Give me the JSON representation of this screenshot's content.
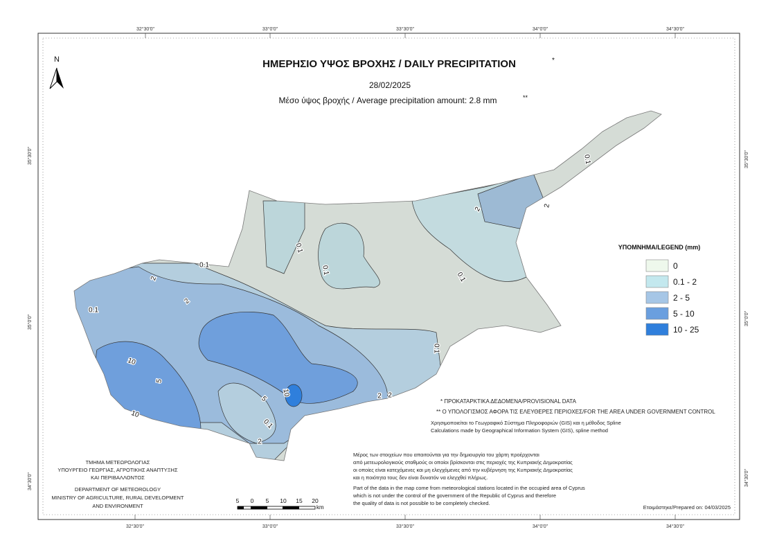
{
  "header": {
    "title": "ΗΜΕΡΗΣΙΟ ΥΨΟΣ ΒΡΟΧΗΣ / DAILY PRECIPITATION",
    "title_mark": "*",
    "date": "28/02/2025",
    "subtitle": "Μέσο ύψος βροχής / Average precipitation amount: 2.8 mm",
    "subtitle_mark": "**"
  },
  "north_label": "N",
  "coordinates": {
    "top": [
      "32°30'0\"",
      "33°0'0\"",
      "33°30'0\"",
      "34°0'0\"",
      "34°30'0\""
    ],
    "bottom": [
      "32°30'0\"",
      "33°0'0\"",
      "33°30'0\"",
      "34°0'0\"",
      "34°30'0\""
    ],
    "left": [
      "35°30'0\"",
      "35°0'0\"",
      "34°30'0\""
    ],
    "right": [
      "35°30'0\"",
      "35°0'0\"",
      "34°30'0\""
    ]
  },
  "legend": {
    "title": "ΥΠΟΜΝΗΜΑ/LEGEND (mm)",
    "items": [
      {
        "label": "0",
        "color": "#eef8ec"
      },
      {
        "label": "0.1 - 2",
        "color": "#c3e8ee"
      },
      {
        "label": "2 - 5",
        "color": "#a6c6e6"
      },
      {
        "label": "5 - 10",
        "color": "#6a9fdf"
      },
      {
        "label": "10 - 25",
        "color": "#2f7fdc"
      }
    ]
  },
  "contour_labels": [
    0.1,
    0.1,
    0.1,
    0.1,
    0.1,
    0.1,
    0.1,
    0.1,
    2,
    2,
    2,
    2,
    2,
    2,
    2,
    5,
    5,
    10,
    10,
    10
  ],
  "notes": {
    "provisional": "* ΠΡΟΚΑΤΑΡΚΤΙΚΑ ΔΕΔΟΜΕΝΑ/PROVISIONAL DATA",
    "area": "** Ο ΥΠΟΛΟΓΙΣΜΟΣ ΑΦΟΡΑ ΤΙΣ ΕΛΕΥΘΕΡΕΣ ΠΕΡΙΟΧΕΣ/FOR THE AREA UNDER GOVERNMENT CONTROL",
    "gis_gr": "Χρησιμοποιείται το Γεωγραφικό Σύστημα Πληροφοριών (GIS) και η μέθοδος Spline",
    "gis_en": "Calculations made by Geographical Information System (GIS), spline method",
    "paragraph_gr": [
      "Μέρος των στοιχείων που απαιτούνται για την δημιουργία του χάρτη προέρχονται",
      "από μετεωρολογικούς σταθμούς οι οποίοι βρίσκονται στις περιοχές της Κυπριακής Δημοκρατίας",
      "οι οποίες είναι κατεχόμενες και μη ελεγχόμενες από την κυβέρνηση της Κυπριακής Δημοκρατίας",
      "και η ποιότητα τους δεν είναι δυνατόν να ελεγχθεί πλήρως."
    ],
    "paragraph_en": [
      "Part of the data in the map come from meteorological stations located in the occupied area of Cyprus",
      "which is not under the control of the government of the Republic of Cyprus and therefore",
      "the quality of data is not possible to be completely checked."
    ],
    "prepared": "Ετοιμάστηκε/Prepared on: 04/03/2025"
  },
  "department": {
    "greek": [
      "ΤΜΗΜΑ ΜΕΤΕΩΡΟΛΟΓΙΑΣ",
      "ΥΠΟΥΡΓΕΙΟ ΓΕΩΡΓΙΑΣ, ΑΓΡΟΤΙΚΗΣ ΑΝΑΠΤΥΞΗΣ",
      "ΚΑΙ ΠΕΡΙΒΑΛΛΟΝΤΟΣ"
    ],
    "english": [
      "DEPARTMENT OF METEOROLOGY",
      "MINISTRY OF AGRICULTURE, RURAL DEVELOPMENT",
      "AND ENVIRONMENT"
    ]
  },
  "scale_bar": {
    "labels": [
      "5",
      "0",
      "5",
      "10",
      "15",
      "20"
    ],
    "unit": "km"
  }
}
